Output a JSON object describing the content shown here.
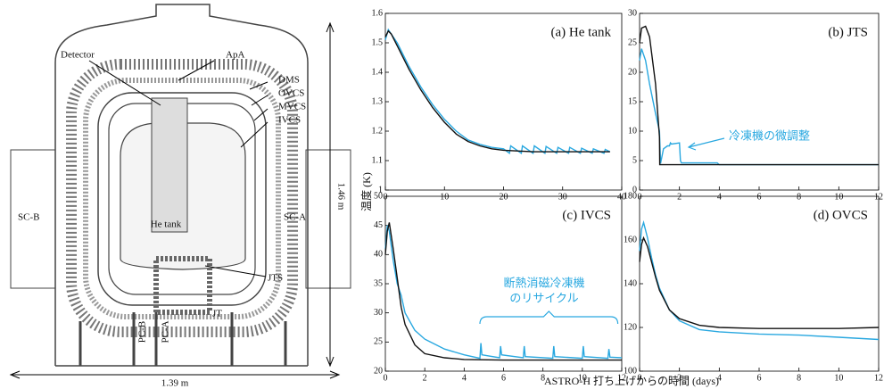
{
  "figure": {
    "ylabel": "温度 (K)",
    "xlabel": "ASTRO-H 打ち上げからの時間 (days)"
  },
  "diagram": {
    "labels": [
      "Detector",
      "ApA",
      "DMS",
      "OVCS",
      "MVCS",
      "IVCS",
      "SC-B",
      "SC-A",
      "He tank",
      "JTS",
      "JT",
      "PC-B",
      "PC-A",
      "1.46 m",
      "1.39 m"
    ]
  },
  "chart_data": [
    {
      "type": "line",
      "title": "(a) He tank",
      "xlim": [
        0,
        40
      ],
      "xticks": [
        0,
        10,
        20,
        30,
        40
      ],
      "ylim": [
        1,
        1.6
      ],
      "yticks": [
        1,
        1.1,
        1.2,
        1.3,
        1.4,
        1.5,
        1.6
      ],
      "series": [
        {
          "color": "#29a8e0",
          "x": [
            0,
            0.5,
            1,
            2,
            4,
            6,
            8,
            10,
            12,
            14,
            16,
            18,
            20,
            21,
            21.2,
            23,
            23.2,
            25,
            25.2,
            27,
            27.2,
            29,
            29.2,
            31,
            31.2,
            33,
            33.2,
            35,
            35.2,
            37,
            37.2,
            38
          ],
          "values": [
            1.51,
            1.545,
            1.53,
            1.5,
            1.42,
            1.35,
            1.29,
            1.24,
            1.2,
            1.17,
            1.155,
            1.145,
            1.14,
            1.125,
            1.15,
            1.125,
            1.15,
            1.125,
            1.15,
            1.125,
            1.148,
            1.125,
            1.145,
            1.125,
            1.145,
            1.125,
            1.142,
            1.125,
            1.14,
            1.125,
            1.138,
            1.13
          ]
        },
        {
          "color": "#111111",
          "x": [
            0,
            0.5,
            1,
            2,
            4,
            6,
            8,
            10,
            12,
            14,
            16,
            18,
            20,
            25,
            30,
            35,
            38
          ],
          "values": [
            1.52,
            1.54,
            1.53,
            1.49,
            1.41,
            1.34,
            1.28,
            1.23,
            1.19,
            1.165,
            1.15,
            1.14,
            1.135,
            1.13,
            1.13,
            1.13,
            1.13
          ]
        }
      ]
    },
    {
      "type": "line",
      "title": "(b) JTS",
      "annotation": "冷凍機の微調整",
      "xlim": [
        0,
        12
      ],
      "xticks": [
        0,
        2,
        4,
        6,
        8,
        10,
        12
      ],
      "ylim": [
        0,
        30
      ],
      "yticks": [
        0,
        5,
        10,
        15,
        20,
        25,
        30
      ],
      "series": [
        {
          "color": "#29a8e0",
          "x": [
            0,
            0.1,
            0.3,
            0.5,
            0.8,
            1,
            1.05,
            1.2,
            1.4,
            1.5,
            1.55,
            1.6,
            2,
            2.05,
            2.1,
            3,
            3.9,
            4,
            6,
            8,
            10,
            12
          ],
          "values": [
            22,
            24,
            22,
            18,
            13,
            10,
            4.5,
            7,
            7.5,
            7.5,
            8,
            7.8,
            8,
            5,
            4.6,
            4.6,
            4.6,
            4.3,
            4.3,
            4.3,
            4.3,
            4.3
          ]
        },
        {
          "color": "#111111",
          "x": [
            0,
            0.1,
            0.3,
            0.5,
            0.8,
            1,
            1.01,
            1.5,
            2,
            3,
            4,
            6,
            8,
            10,
            12
          ],
          "values": [
            25,
            27.5,
            27.8,
            26,
            18,
            9,
            4.3,
            4.3,
            4.3,
            4.3,
            4.3,
            4.3,
            4.3,
            4.3,
            4.3
          ]
        }
      ]
    },
    {
      "type": "line",
      "title": "(c) IVCS",
      "annotation": [
        "断熱消磁冷凍機",
        "のリサイクル"
      ],
      "xlim": [
        0,
        12
      ],
      "xticks": [
        0,
        2,
        4,
        6,
        8,
        10,
        12
      ],
      "ylim": [
        20,
        50
      ],
      "yticks": [
        20,
        25,
        30,
        35,
        40,
        45,
        50
      ],
      "series": [
        {
          "color": "#29a8e0",
          "x": [
            0,
            0.1,
            0.2,
            0.4,
            0.6,
            0.8,
            1,
            1.5,
            2,
            3,
            4,
            4.8,
            4.85,
            4.9,
            5.8,
            5.85,
            5.9,
            7,
            7.05,
            7.1,
            8.5,
            8.55,
            8.6,
            10,
            10.05,
            10.1,
            11.3,
            11.35,
            11.4,
            12
          ],
          "values": [
            41,
            45,
            44,
            39,
            35,
            33,
            30,
            27,
            25.5,
            23.8,
            22.8,
            22.2,
            24.8,
            22.8,
            22.3,
            24.3,
            22.8,
            22.3,
            24.3,
            22.5,
            22.2,
            24.3,
            22.5,
            22.2,
            24.3,
            22.5,
            22.2,
            23.8,
            22.4,
            22.3
          ]
        },
        {
          "color": "#111111",
          "x": [
            0,
            0.1,
            0.2,
            0.4,
            0.6,
            0.8,
            1,
            1.5,
            2,
            3,
            4,
            6,
            8,
            10,
            12
          ],
          "values": [
            40,
            44,
            45.5,
            41,
            36,
            31,
            28,
            24.5,
            23,
            22.3,
            22,
            21.9,
            21.9,
            21.9,
            21.9
          ]
        }
      ]
    },
    {
      "type": "line",
      "title": "(d) OVCS",
      "xlim": [
        0,
        12
      ],
      "xticks": [
        0,
        2,
        4,
        6,
        8,
        10,
        12
      ],
      "ylim": [
        100,
        180
      ],
      "yticks": [
        100,
        120,
        140,
        160,
        180
      ],
      "series": [
        {
          "color": "#29a8e0",
          "x": [
            0,
            0.1,
            0.2,
            0.4,
            0.6,
            0.8,
            1,
            1.5,
            2,
            3,
            4,
            6,
            8,
            10,
            12
          ],
          "values": [
            155,
            165,
            168,
            161,
            152,
            144,
            138,
            128,
            123,
            119,
            118,
            117,
            116.5,
            115.5,
            114.5
          ]
        },
        {
          "color": "#111111",
          "x": [
            0,
            0.1,
            0.2,
            0.4,
            0.6,
            0.8,
            1,
            1.5,
            2,
            3,
            4,
            6,
            8,
            10,
            12
          ],
          "values": [
            150,
            158,
            161,
            157,
            150,
            143,
            137,
            128,
            124,
            121,
            120,
            119.5,
            119.5,
            119.5,
            120
          ]
        }
      ]
    }
  ]
}
